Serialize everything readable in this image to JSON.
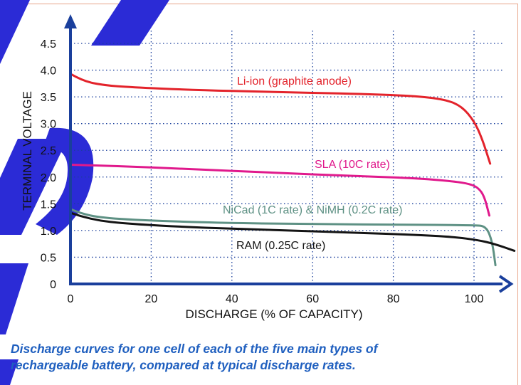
{
  "caption": "Discharge curves for one cell of each of the five main types of\nrechargeable battery, compared at typical discharge rates.",
  "colors": {
    "axis": "#1a3f9c",
    "grid": "#1a3f9c",
    "caption": "#1f5fbf",
    "watermark": "#2b2bd6",
    "border": "#e8a58a"
  },
  "chart_data": {
    "type": "line",
    "xlabel": "DISCHARGE (% OF CAPACITY)",
    "ylabel": "TERMINAL VOLTAGE",
    "xlim": [
      0,
      105
    ],
    "ylim": [
      0,
      4.5
    ],
    "xticks": [
      "0",
      "20",
      "40",
      "60",
      "80",
      "100"
    ],
    "yticks": [
      "0",
      "0.5",
      "1.0",
      "1.5",
      "2.0",
      "2.5",
      "3.0",
      "3.5",
      "4.0",
      "4.5"
    ],
    "grid": true,
    "series": [
      {
        "name": "Li-ion (graphite anode)",
        "color": "#e3232b",
        "points": [
          [
            0,
            3.93
          ],
          [
            3,
            3.8
          ],
          [
            8,
            3.72
          ],
          [
            15,
            3.68
          ],
          [
            30,
            3.63
          ],
          [
            50,
            3.59
          ],
          [
            70,
            3.56
          ],
          [
            85,
            3.52
          ],
          [
            93,
            3.45
          ],
          [
            97,
            3.32
          ],
          [
            100,
            3.05
          ],
          [
            102,
            2.72
          ],
          [
            104,
            2.25
          ]
        ]
      },
      {
        "name": "SLA (10C rate)",
        "color": "#e0198c",
        "points": [
          [
            0,
            2.23
          ],
          [
            10,
            2.21
          ],
          [
            30,
            2.15
          ],
          [
            50,
            2.08
          ],
          [
            70,
            2.02
          ],
          [
            85,
            1.98
          ],
          [
            95,
            1.92
          ],
          [
            99,
            1.87
          ],
          [
            101,
            1.8
          ],
          [
            102.5,
            1.65
          ],
          [
            103.8,
            1.28
          ]
        ]
      },
      {
        "name": "NiCad (1C rate) & NiMH (0.2C rate)",
        "color": "#5e9184",
        "points": [
          [
            0,
            1.4
          ],
          [
            3,
            1.3
          ],
          [
            10,
            1.22
          ],
          [
            25,
            1.17
          ],
          [
            40,
            1.14
          ],
          [
            60,
            1.12
          ],
          [
            80,
            1.11
          ],
          [
            100,
            1.1
          ],
          [
            103,
            1.08
          ],
          [
            104.5,
            0.8
          ],
          [
            105.3,
            0.35
          ]
        ]
      },
      {
        "name": "RAM (0.25C rate)",
        "color": "#141414",
        "points": [
          [
            0,
            1.33
          ],
          [
            5,
            1.2
          ],
          [
            15,
            1.12
          ],
          [
            30,
            1.06
          ],
          [
            50,
            1.01
          ],
          [
            70,
            0.96
          ],
          [
            85,
            0.92
          ],
          [
            95,
            0.88
          ],
          [
            101,
            0.82
          ],
          [
            105,
            0.75
          ],
          [
            110,
            0.62
          ]
        ]
      }
    ]
  }
}
